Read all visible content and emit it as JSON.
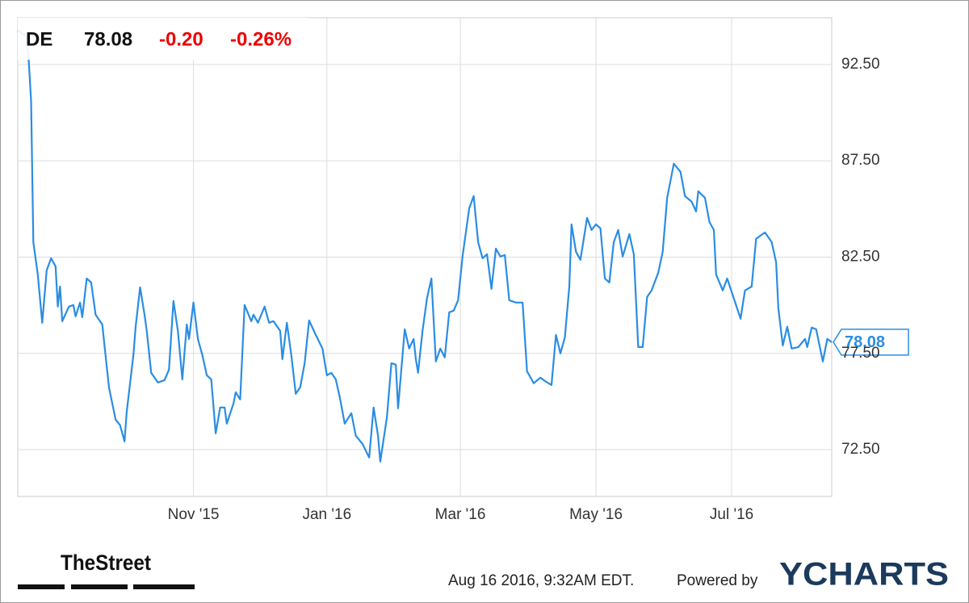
{
  "chart_data": {
    "type": "line",
    "ticker": "DE",
    "price": "78.08",
    "change": "-0.20",
    "change_percent": "-0.26%",
    "x": [
      0,
      4,
      5,
      6,
      7,
      9,
      11,
      13,
      15,
      17,
      18,
      19,
      20,
      23,
      25,
      26,
      28,
      29,
      31,
      33,
      35,
      38,
      41,
      44,
      46,
      48,
      49,
      52,
      53,
      55,
      57,
      58,
      60,
      63,
      66,
      68,
      70,
      72,
      74,
      76,
      77,
      79,
      81,
      83,
      85,
      87,
      89,
      91,
      93,
      94,
      97,
      98,
      100,
      102,
      105,
      106,
      108,
      111,
      113,
      115,
      118,
      119,
      121,
      123,
      125,
      127,
      129,
      131,
      134,
      137,
      139,
      141,
      143,
      145,
      147,
      150,
      152,
      155,
      158,
      160,
      162,
      163,
      166,
      168,
      170,
      171,
      174,
      176,
      178,
      179,
      180,
      182,
      184,
      186,
      188,
      190,
      192,
      194,
      196,
      198,
      200,
      203,
      205,
      207,
      209,
      211,
      213,
      215,
      217,
      219,
      221,
      224,
      227,
      229,
      232,
      235,
      237,
      240,
      242,
      244,
      246,
      248,
      249,
      251,
      253,
      256,
      258,
      260,
      262,
      264,
      266,
      268,
      270,
      272,
      275,
      277,
      279,
      281,
      283,
      285,
      288,
      290,
      292,
      295,
      298,
      300,
      303,
      305,
      306,
      309,
      311,
      313,
      314,
      317,
      319,
      322,
      325,
      327,
      330,
      332,
      334,
      336,
      339,
      341,
      342,
      344,
      346,
      348,
      351,
      354,
      355,
      357,
      359,
      362,
      364,
      366
    ],
    "values": [
      94.26,
      93.97,
      92.58,
      90.61,
      83.28,
      81.6,
      79.09,
      81.81,
      82.44,
      82.02,
      79.93,
      80.97,
      79.17,
      79.93,
      80.01,
      79.42,
      80.14,
      79.38,
      81.39,
      81.18,
      79.51,
      79.0,
      75.74,
      74.06,
      73.77,
      72.93,
      74.48,
      77.41,
      78.88,
      80.93,
      79.51,
      78.67,
      76.49,
      75.99,
      76.11,
      76.66,
      80.22,
      78.67,
      76.15,
      79.0,
      78.25,
      80.14,
      78.25,
      77.41,
      76.36,
      76.15,
      73.35,
      74.69,
      74.69,
      73.85,
      74.9,
      75.48,
      75.11,
      80.01,
      79.17,
      79.51,
      79.09,
      79.93,
      79.09,
      79.17,
      78.67,
      77.2,
      79.09,
      77.41,
      75.4,
      75.74,
      76.99,
      79.21,
      78.46,
      77.75,
      76.36,
      76.49,
      76.15,
      75.11,
      73.85,
      74.39,
      73.22,
      72.8,
      72.09,
      74.69,
      73.22,
      71.88,
      74.19,
      76.99,
      76.91,
      74.65,
      78.75,
      77.75,
      78.25,
      77.2,
      76.49,
      78.67,
      80.35,
      81.39,
      77.08,
      77.75,
      77.29,
      79.63,
      79.72,
      80.26,
      82.53,
      85.04,
      85.67,
      83.28,
      82.44,
      82.65,
      80.85,
      82.94,
      82.53,
      82.61,
      80.26,
      80.14,
      80.14,
      76.57,
      75.95,
      76.24,
      76.07,
      75.86,
      78.46,
      77.5,
      78.33,
      80.97,
      84.2,
      82.78,
      82.36,
      84.54,
      83.91,
      84.2,
      83.99,
      81.39,
      81.18,
      83.28,
      83.91,
      82.53,
      83.7,
      82.65,
      77.83,
      77.83,
      80.43,
      80.77,
      81.69,
      82.78,
      85.58,
      87.35,
      86.93,
      85.67,
      85.38,
      84.87,
      85.92,
      85.58,
      84.33,
      83.91,
      81.6,
      80.77,
      81.39,
      80.35,
      79.3,
      80.77,
      80.97,
      83.45,
      83.62,
      83.78,
      83.28,
      82.23,
      79.84,
      77.91,
      78.88,
      77.75,
      77.83,
      78.25,
      77.83,
      78.84,
      78.75,
      77.08,
      78.25,
      78.08
    ],
    "color": "#2a8de3",
    "xlim": [
      0,
      366
    ],
    "xticks": [
      {
        "value": 79,
        "label": "Nov '15"
      },
      {
        "value": 139,
        "label": "Jan '16"
      },
      {
        "value": 199,
        "label": "Mar '16"
      },
      {
        "value": 260,
        "label": "May '16"
      },
      {
        "value": 321,
        "label": "Jul '16"
      }
    ],
    "ylim": [
      70.07,
      94.93
    ],
    "yticks": [
      {
        "value": 72.5,
        "label": "72.50"
      },
      {
        "value": 77.5,
        "label": "77.50"
      },
      {
        "value": 82.5,
        "label": "82.50"
      },
      {
        "value": 87.5,
        "label": "87.50"
      },
      {
        "value": 92.5,
        "label": "92.50"
      }
    ],
    "grid": true,
    "timestamp": "Aug 16 2016, 9:32AM EDT.",
    "powered_by": "Powered by",
    "brand": "YCHARTS",
    "source_logo": "TheStreet"
  }
}
